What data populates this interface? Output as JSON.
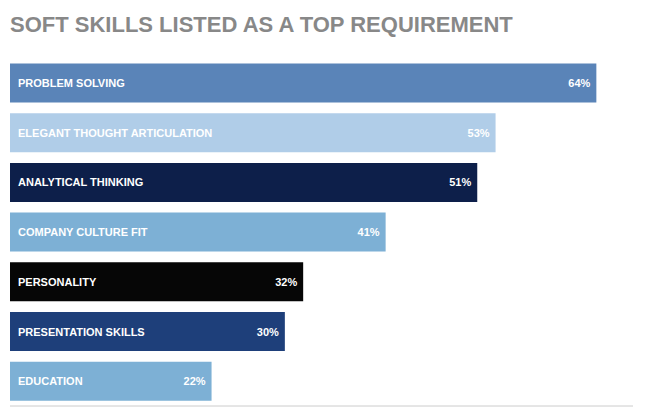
{
  "chart_data": {
    "type": "bar",
    "orientation": "horizontal",
    "title": "SOFT SKILLS LISTED AS A TOP REQUIREMENT",
    "categories": [
      "EDUCATION",
      "PRESENTATION SKILLS",
      "PERSONALITY",
      "COMPANY CULTURE FIT",
      "ANALYTICAL THINKING",
      "ELEGANT THOUGHT ARTICULATION",
      "PROBLEM SOLVING"
    ],
    "values": [
      22,
      30,
      32,
      41,
      51,
      53,
      64
    ],
    "value_labels": [
      "22%",
      "30%",
      "32%",
      "41%",
      "51%",
      "53%",
      "64%"
    ],
    "colors": [
      "#7db0d5",
      "#1e3f7a",
      "#060606",
      "#7db0d5",
      "#0d1f4a",
      "#b0cde8",
      "#5a84b8"
    ],
    "xlim": [
      0,
      68
    ],
    "data_labels": true,
    "tick_labels": false
  }
}
